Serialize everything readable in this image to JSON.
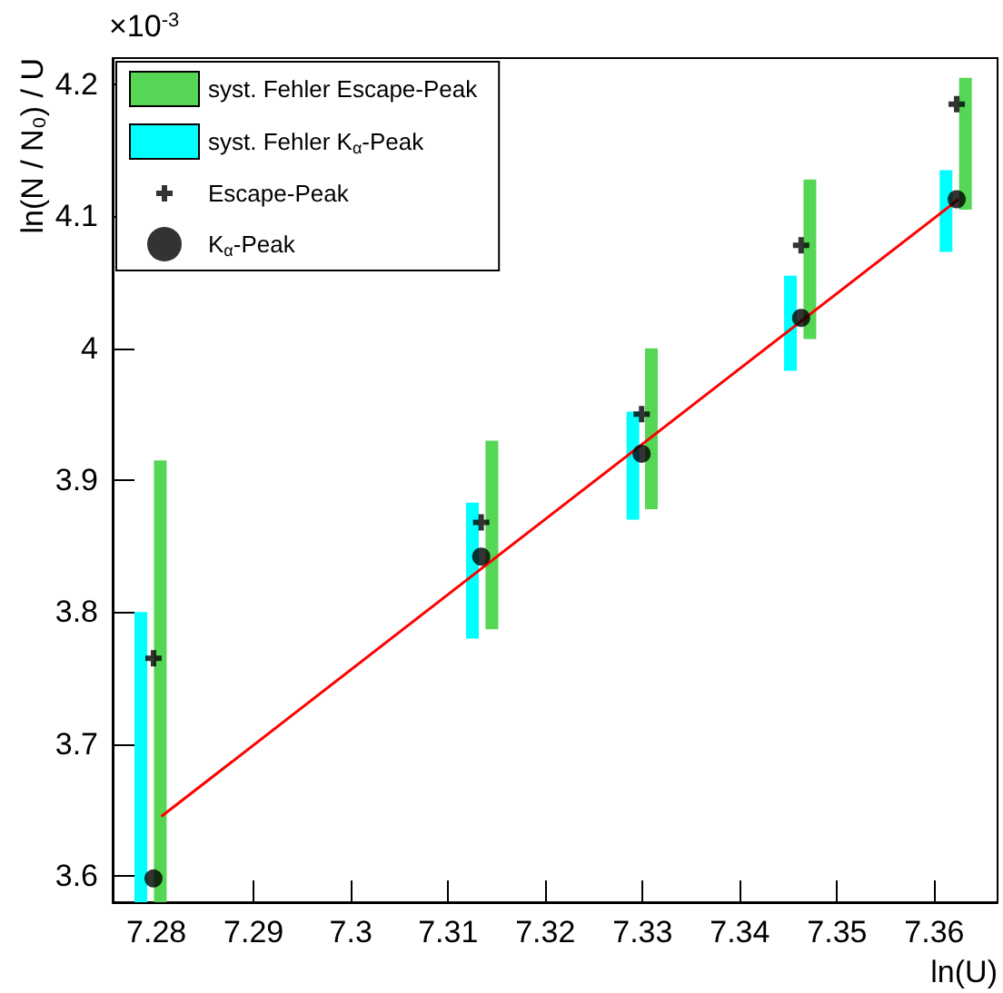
{
  "chart_data": {
    "type": "scatter",
    "xlabel": "ln(U)",
    "ylabel": "ln(N / N₀) / U",
    "annotations": [
      "×10$^{-3}$"
    ],
    "xlim": [
      7.2755,
      7.3665
    ],
    "xticks": [
      7.28,
      7.29,
      7.3,
      7.31,
      7.32,
      7.33,
      7.34,
      7.35,
      7.36
    ],
    "ylim": [
      3.58,
      4.22
    ],
    "yticks": [
      3.6,
      3.7,
      3.8,
      3.9,
      4,
      4.1,
      4.2
    ],
    "grid": false,
    "legend": "top left",
    "series": [
      {
        "name": "syst. Fehler Escape-Peak",
        "type": "bar",
        "color": "#55d655",
        "x": [
          7.2804,
          7.3145,
          7.3309,
          7.3472,
          7.3632
        ],
        "base": [
          3.58,
          3.787,
          3.878,
          4.007,
          4.105
        ],
        "values": [
          0.335,
          0.143,
          0.122,
          0.121,
          0.1
        ]
      },
      {
        "name": "syst. Fehler K$_{α}$-Peak",
        "type": "bar",
        "color": "#00ffff",
        "x": [
          7.2784,
          7.3125,
          7.329,
          7.3452,
          7.3612
        ],
        "base": [
          3.58,
          3.78,
          3.87,
          3.983,
          4.073
        ],
        "values": [
          0.22,
          0.103,
          0.082,
          0.072,
          0.062
        ]
      },
      {
        "name": "Escape-Peak",
        "marker": "cross",
        "color": "#000000",
        "x": [
          7.2797,
          7.3134,
          7.3299,
          7.3463,
          7.3623
        ],
        "values": [
          3.765,
          3.868,
          3.95,
          4.078,
          4.185
        ]
      },
      {
        "name": "K$_{α}$-Peak",
        "marker": "circle",
        "color": "#000000",
        "x": [
          7.2797,
          7.3134,
          7.3299,
          7.3463,
          7.3623
        ],
        "values": [
          3.598,
          3.842,
          3.92,
          4.023,
          4.113
        ]
      },
      {
        "type": "line",
        "color": "#ff0000",
        "x": [
          7.2805,
          7.3625
        ],
        "values": [
          3.645,
          4.113
        ]
      }
    ]
  }
}
